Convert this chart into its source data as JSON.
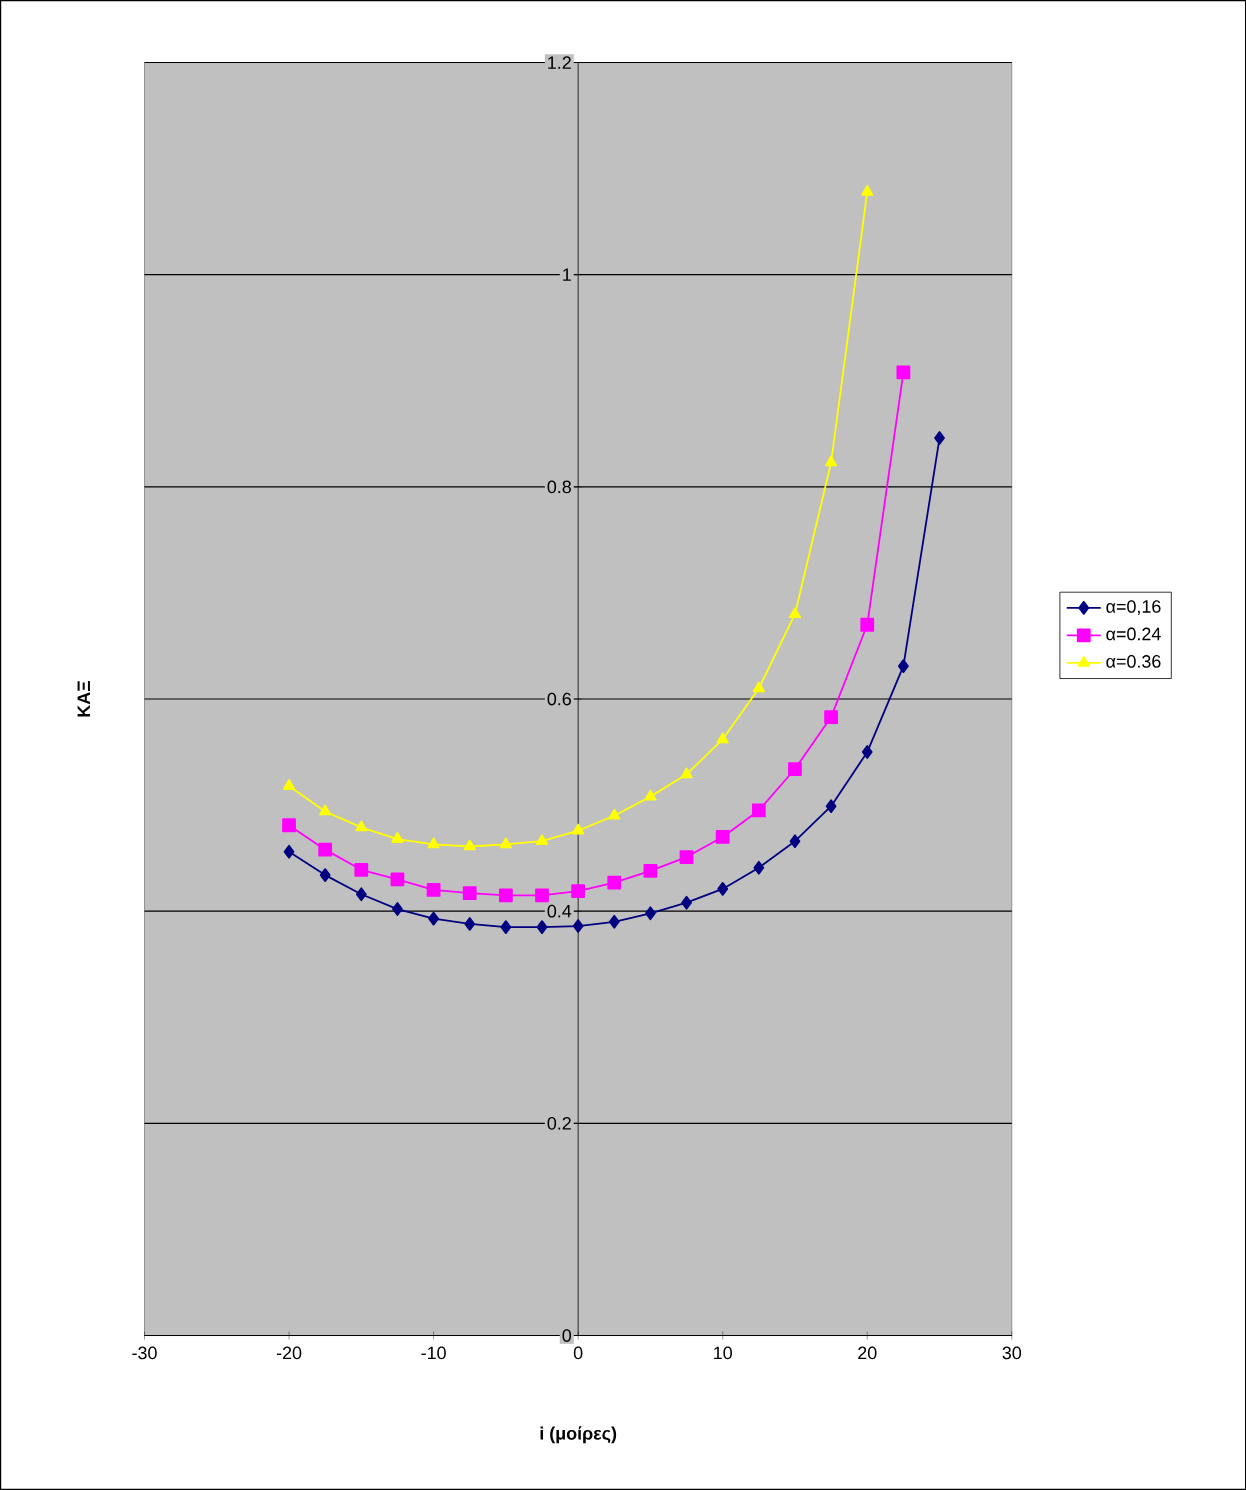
{
  "chart_data": {
    "type": "line",
    "xlabel": "i (μοίρες)",
    "ylabel": "KAΞ",
    "series": [
      {
        "name": "α=0,16",
        "color": "#000080",
        "marker": "diamond",
        "x": [
          -20,
          -17.5,
          -15,
          -12.5,
          -10,
          -7.5,
          -5,
          -2.5,
          0,
          2.5,
          5,
          7.5,
          10,
          12.5,
          15,
          17.5,
          20,
          22.5,
          25
        ],
        "values": [
          0.456,
          0.434,
          0.416,
          0.402,
          0.393,
          0.388,
          0.385,
          0.385,
          0.386,
          0.39,
          0.398,
          0.408,
          0.421,
          0.441,
          0.466,
          0.499,
          0.55,
          0.631,
          0.846
        ]
      },
      {
        "name": "α=0.24",
        "color": "#ff00ff",
        "marker": "square",
        "x": [
          -20,
          -17.5,
          -15,
          -12.5,
          -10,
          -7.5,
          -5,
          -2.5,
          0,
          2.5,
          5,
          7.5,
          10,
          12.5,
          15,
          17.5,
          20,
          22.5
        ],
        "values": [
          0.481,
          0.458,
          0.439,
          0.43,
          0.42,
          0.417,
          0.415,
          0.415,
          0.419,
          0.427,
          0.438,
          0.451,
          0.47,
          0.495,
          0.534,
          0.583,
          0.67,
          0.908
        ]
      },
      {
        "name": "α=0.36",
        "color": "#ffff00",
        "marker": "triangle",
        "x": [
          -20,
          -17.5,
          -15,
          -12.5,
          -10,
          -7.5,
          -5,
          -2.5,
          0,
          2.5,
          5,
          7.5,
          10,
          12.5,
          15,
          17.5,
          20
        ],
        "values": [
          0.518,
          0.494,
          0.479,
          0.468,
          0.463,
          0.461,
          0.463,
          0.466,
          0.476,
          0.49,
          0.508,
          0.529,
          0.562,
          0.61,
          0.68,
          0.823,
          1.078
        ]
      }
    ],
    "xlim": [
      -30,
      30
    ],
    "xticks": [
      -30,
      -20,
      -10,
      0,
      10,
      20,
      30
    ],
    "ylim": [
      0,
      1.2
    ],
    "yticks": [
      0,
      0.2,
      0.4,
      0.6,
      0.8,
      1,
      1.2
    ],
    "grid": "y",
    "legend": "right",
    "line_style": "solid"
  }
}
